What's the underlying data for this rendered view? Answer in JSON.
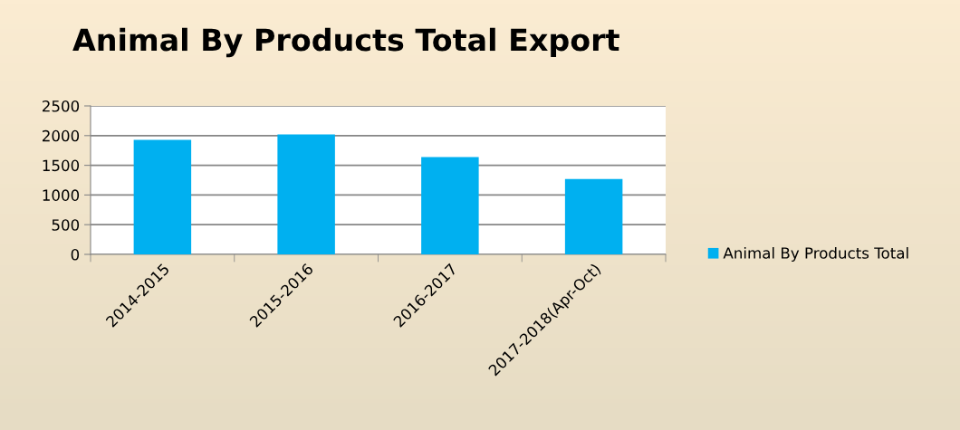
{
  "chart_data": {
    "type": "bar",
    "title": "Animal By Products Total Export",
    "categories": [
      "2014-2015",
      "2015-2016",
      "2016-2017",
      "2017-2018(Apr-Oct)"
    ],
    "series": [
      {
        "name": "Animal By Products Total",
        "color": "#00b0f0",
        "values": [
          1930,
          2020,
          1640,
          1270
        ]
      }
    ],
    "ylim": [
      0,
      2500
    ],
    "yticks": [
      0,
      500,
      1000,
      1500,
      2000,
      2500
    ],
    "grid": "y",
    "legend": "right"
  }
}
